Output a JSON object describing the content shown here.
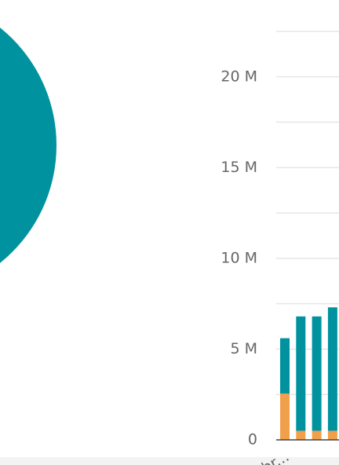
{
  "chart_data": {
    "type": "stacked_bar",
    "categories": [
      "br...",
      null,
      null,
      null
    ],
    "series": [
      {
        "color": "#f0a04b",
        "values": [
          2550000,
          500000,
          500000,
          500000
        ]
      },
      {
        "color": "#00939f",
        "values": [
          3050000,
          6300000,
          6300000,
          6800000
        ]
      }
    ],
    "ylim": [
      0,
      22500000
    ],
    "yticks": [
      {
        "value": 0,
        "label": "0"
      },
      {
        "value": 5000000,
        "label": "5 M"
      },
      {
        "value": 10000000,
        "label": "10 M"
      },
      {
        "value": 15000000,
        "label": "15 M"
      },
      {
        "value": 20000000,
        "label": "20 M"
      }
    ],
    "minor_yticks": [
      2500000,
      7500000,
      12500000,
      17500000,
      22500000
    ],
    "grid": true
  }
}
